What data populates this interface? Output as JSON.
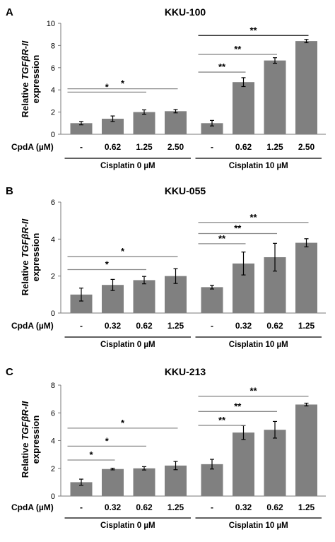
{
  "figure": {
    "x_row_label": "CpdA (µM)",
    "ylabel_prefix": "Relative ",
    "ylabel_gene": "TGFβR-II",
    "ylabel_line2": "expression"
  },
  "chart_data": [
    {
      "panel": "A",
      "type": "bar",
      "title": "KKU-100",
      "ylim": [
        0,
        10
      ],
      "yticks": [
        0,
        2,
        4,
        6,
        8,
        10
      ],
      "categories": [
        "-",
        "0.62",
        "1.25",
        "2.50",
        "-",
        "0.62",
        "1.25",
        "2.50"
      ],
      "values": [
        1.0,
        1.4,
        2.0,
        2.08,
        1.0,
        4.7,
        6.65,
        8.4
      ],
      "errors": [
        0.15,
        0.25,
        0.2,
        0.15,
        0.25,
        0.4,
        0.25,
        0.15
      ],
      "groups": [
        {
          "label": "Cisplatin 0 µM",
          "start": 0,
          "end": 3
        },
        {
          "label": "Cisplatin 10 µM",
          "start": 4,
          "end": 7
        }
      ],
      "significance": [
        {
          "from": 0,
          "to": 2,
          "label": "*",
          "y": 3.8
        },
        {
          "from": 0,
          "to": 3,
          "label": "*",
          "y": 4.1
        },
        {
          "from": 4,
          "to": 5,
          "label": "**",
          "y": 5.6
        },
        {
          "from": 4,
          "to": 6,
          "label": "**",
          "y": 7.2
        },
        {
          "from": 4,
          "to": 7,
          "label": "**",
          "y": 8.9
        }
      ]
    },
    {
      "panel": "B",
      "type": "bar",
      "title": "KKU-055",
      "ylim": [
        0,
        6
      ],
      "yticks": [
        0,
        2,
        4,
        6
      ],
      "categories": [
        "-",
        "0.32",
        "0.62",
        "1.25",
        "-",
        "0.32",
        "0.62",
        "1.25"
      ],
      "values": [
        1.0,
        1.52,
        1.78,
        2.0,
        1.4,
        2.68,
        3.02,
        3.8
      ],
      "errors": [
        0.35,
        0.3,
        0.2,
        0.4,
        0.1,
        0.62,
        0.75,
        0.22
      ],
      "groups": [
        {
          "label": "Cisplatin 0 µM",
          "start": 0,
          "end": 3
        },
        {
          "label": "Cisplatin 10 µM",
          "start": 4,
          "end": 7
        }
      ],
      "significance": [
        {
          "from": 0,
          "to": 2,
          "label": "*",
          "y": 2.35
        },
        {
          "from": 0,
          "to": 3,
          "label": "*",
          "y": 3.05
        },
        {
          "from": 4,
          "to": 5,
          "label": "**",
          "y": 3.75
        },
        {
          "from": 4,
          "to": 6,
          "label": "**",
          "y": 4.3
        },
        {
          "from": 4,
          "to": 7,
          "label": "**",
          "y": 4.9
        }
      ]
    },
    {
      "panel": "C",
      "type": "bar",
      "title": "KKU-213",
      "ylim": [
        0,
        8
      ],
      "yticks": [
        0,
        2,
        4,
        6,
        8
      ],
      "categories": [
        "-",
        "0.32",
        "0.62",
        "1.25",
        "-",
        "0.32",
        "0.62",
        "1.25"
      ],
      "values": [
        1.0,
        1.95,
        2.0,
        2.2,
        2.3,
        4.58,
        4.78,
        6.6
      ],
      "errors": [
        0.22,
        0.06,
        0.12,
        0.3,
        0.35,
        0.5,
        0.6,
        0.1
      ],
      "groups": [
        {
          "label": "Cisplatin 0 µM",
          "start": 0,
          "end": 3
        },
        {
          "label": "Cisplatin 10 µM",
          "start": 4,
          "end": 7
        }
      ],
      "significance": [
        {
          "from": 0,
          "to": 1,
          "label": "*",
          "y": 2.6
        },
        {
          "from": 0,
          "to": 2,
          "label": "*",
          "y": 3.6
        },
        {
          "from": 0,
          "to": 3,
          "label": "*",
          "y": 4.9
        },
        {
          "from": 4,
          "to": 5,
          "label": "**",
          "y": 5.1
        },
        {
          "from": 4,
          "to": 6,
          "label": "**",
          "y": 6.1
        },
        {
          "from": 4,
          "to": 7,
          "label": "**",
          "y": 7.2
        }
      ]
    }
  ]
}
